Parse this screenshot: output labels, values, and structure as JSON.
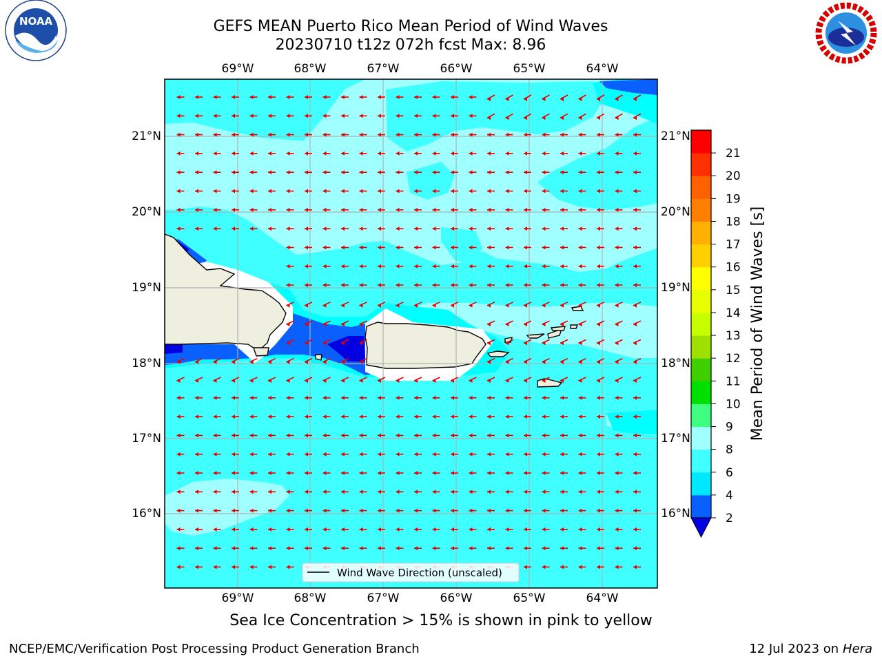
{
  "header": {
    "title_line1": "GEFS MEAN Puerto Rico Mean Period of Wind Waves",
    "title_line2": "20230710 t12z 072h fcst   Max: 8.96"
  },
  "logos": {
    "noaa": {
      "text": "NOAA",
      "icon": "noaa-logo"
    },
    "nws": {
      "icon": "national-weather-service-logo"
    }
  },
  "map": {
    "lon_ticks": [
      "69°W",
      "68°W",
      "67°W",
      "66°W",
      "65°W",
      "64°W"
    ],
    "lat_ticks": [
      "21°N",
      "20°N",
      "19°N",
      "18°N",
      "17°N",
      "16°N"
    ],
    "legend_label": "Wind Wave Direction (unscaled)",
    "arrow_color": "#e60000",
    "grid_color": "#b0b0b0",
    "land_color": "#efefe0"
  },
  "colorbar": {
    "label": "Mean Period of Wind Waves [s]",
    "ticks": [
      "2",
      "4",
      "6",
      "8",
      "9",
      "10",
      "11",
      "12",
      "13",
      "14",
      "15",
      "16",
      "17",
      "18",
      "19",
      "20",
      "21"
    ],
    "colors": [
      "#0a60ff",
      "#00e8ff",
      "#40ffff",
      "#a0ffff",
      "#40ff80",
      "#00e000",
      "#40d000",
      "#a0e000",
      "#c8ff00",
      "#e8ff00",
      "#ffff00",
      "#ffd000",
      "#ffb000",
      "#ff8000",
      "#ff6000",
      "#ff3000",
      "#ff0000"
    ],
    "extend_color": "#0000e0"
  },
  "footer": {
    "note": "Sea Ice Concentration > 15% is shown in pink to yellow",
    "left": "NCEP/EMC/Verification Post Processing Product Generation Branch",
    "right_prefix": "12 Jul 2023 on ",
    "right_host": "Hera"
  }
}
